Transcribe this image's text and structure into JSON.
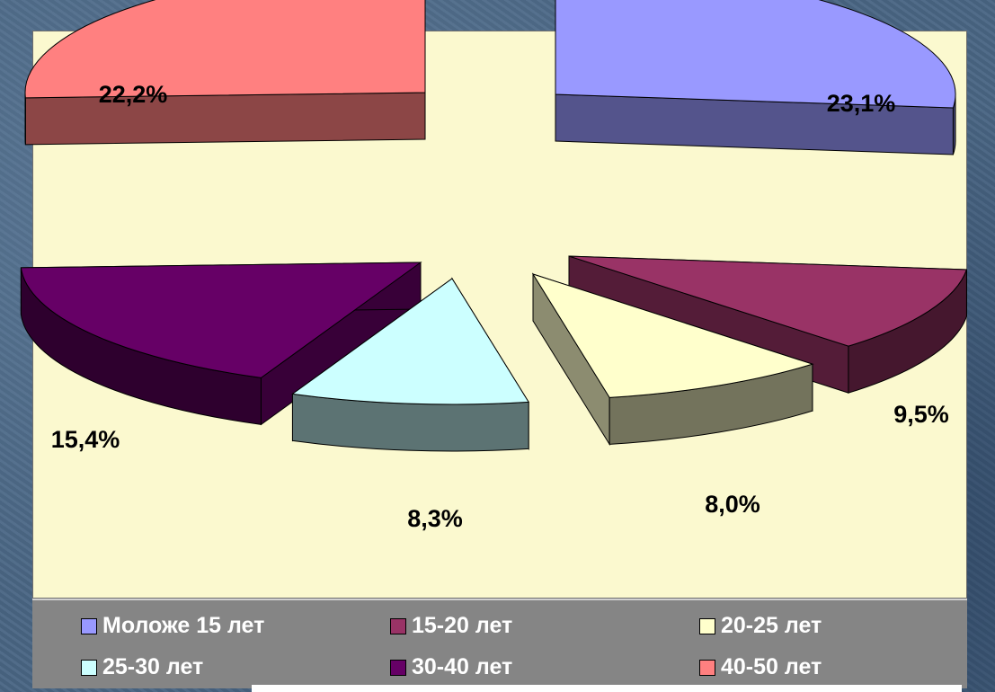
{
  "chart_data": {
    "type": "pie",
    "title": "",
    "slices": [
      {
        "label": "Моложе 15 лет",
        "value": 23.1,
        "value_label": "23,1%",
        "color": "#9999ff"
      },
      {
        "label": "15-20 лет",
        "value": 9.5,
        "value_label": "9,5%",
        "color": "#993366"
      },
      {
        "label": "20-25 лет",
        "value": 8.0,
        "value_label": "8,0%",
        "color": "#ffffcc"
      },
      {
        "label": "25-30 лет",
        "value": 8.3,
        "value_label": "8,3%",
        "color": "#ccffff"
      },
      {
        "label": "30-40 лет",
        "value": 15.4,
        "value_label": "15,4%",
        "color": "#660066"
      },
      {
        "label": "40-50 лет",
        "value": 22.2,
        "value_label": "22,2%",
        "color": "#ff8080"
      }
    ],
    "style": "3d-exploded",
    "legend_position": "bottom"
  }
}
